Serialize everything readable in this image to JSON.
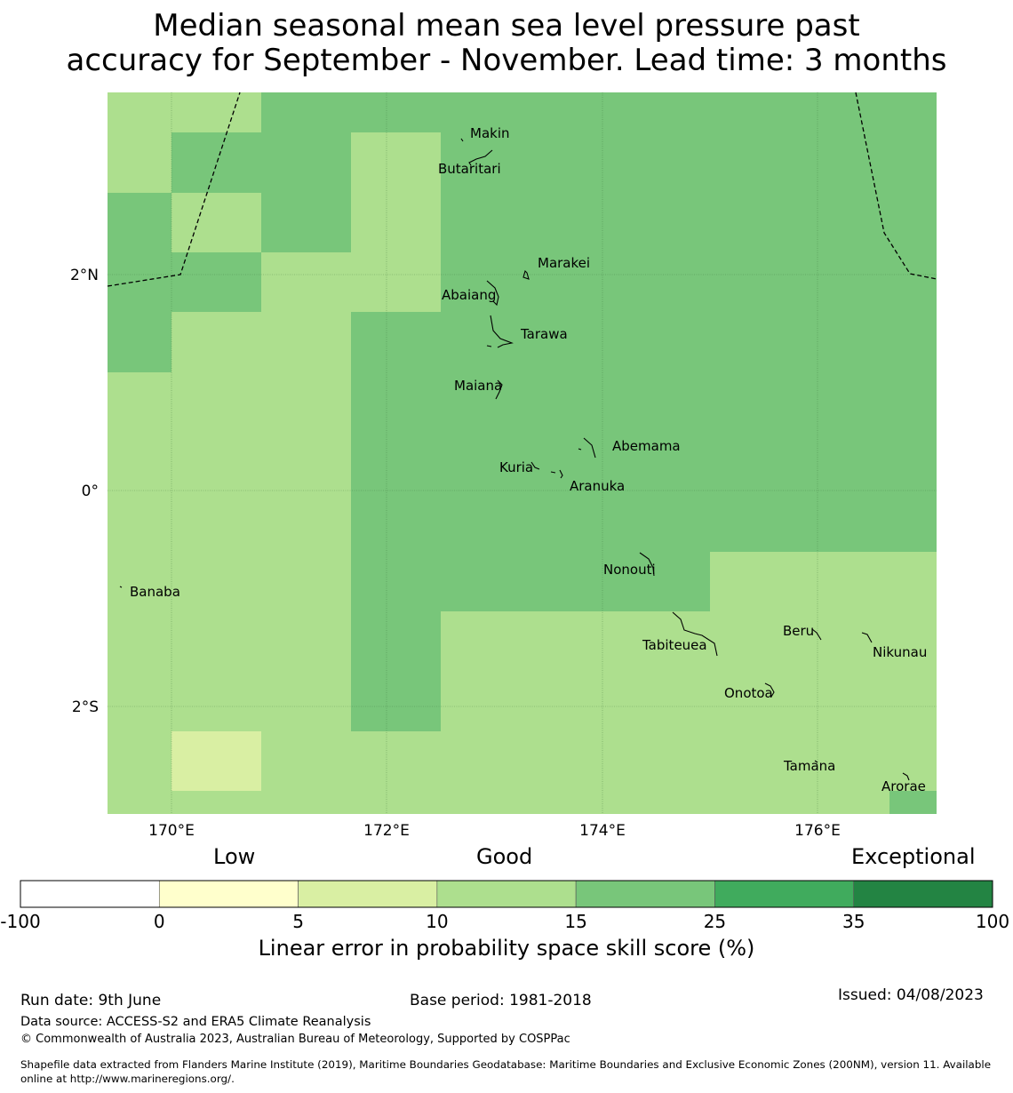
{
  "title": {
    "line1": "Median seasonal mean sea level pressure past",
    "line2": "accuracy for September - November. Lead time: 3 months"
  },
  "map": {
    "lat_ticks": [
      "2°N",
      "0°",
      "2°S"
    ],
    "lon_ticks": [
      "170°E",
      "172°E",
      "174°E",
      "176°E"
    ],
    "place_names": [
      "Makin",
      "Butaritari",
      "Marakei",
      "Abaiang",
      "Tarawa",
      "Maiana",
      "Abemama",
      "Kuria",
      "Aranuka",
      "Nonouti",
      "Banaba",
      "Tabiteuea",
      "Beru",
      "Nikunau",
      "Onotoa",
      "Tamana",
      "Arorae"
    ],
    "colors": {
      "class_10_15": "#addf8e",
      "class_15_25": "#78c67a",
      "class_5_10": "#d9efa3"
    }
  },
  "colorbar": {
    "categories": {
      "low": "Low",
      "good": "Good",
      "exceptional": "Exceptional"
    },
    "bins": [
      {
        "from": "-100",
        "color": "#ffffff"
      },
      {
        "from": "0",
        "color": "#ffffcc"
      },
      {
        "from": "5",
        "color": "#d9efa3"
      },
      {
        "from": "10",
        "color": "#addf8e"
      },
      {
        "from": "15",
        "color": "#78c67a"
      },
      {
        "from": "25",
        "color": "#40ab5d"
      },
      {
        "from": "35",
        "color": "#238443"
      }
    ],
    "tick_labels": [
      "-100",
      "0",
      "5",
      "10",
      "15",
      "25",
      "35",
      "100"
    ],
    "label": "Linear error in probability space skill score (%)"
  },
  "footer": {
    "run_date": "Run date: 9th June",
    "base_period": "Base period: 1981-2018",
    "issued": "Issued: 04/08/2023",
    "data_source": "Data source: ACCESS-S2 and ERA5 Climate Reanalysis",
    "copyright": "© Commonwealth of Australia 2023, Australian Bureau of Meteorology, Supported by COSPPac",
    "shapefile_line1": "Shapefile data extracted from Flanders Marine Institute (2019), Maritime Boundaries Geodatabase: Maritime Boundaries and Exclusive Economic Zones (200NM), version 11. Available",
    "shapefile_line2": "online at http://www.marineregions.org/."
  }
}
